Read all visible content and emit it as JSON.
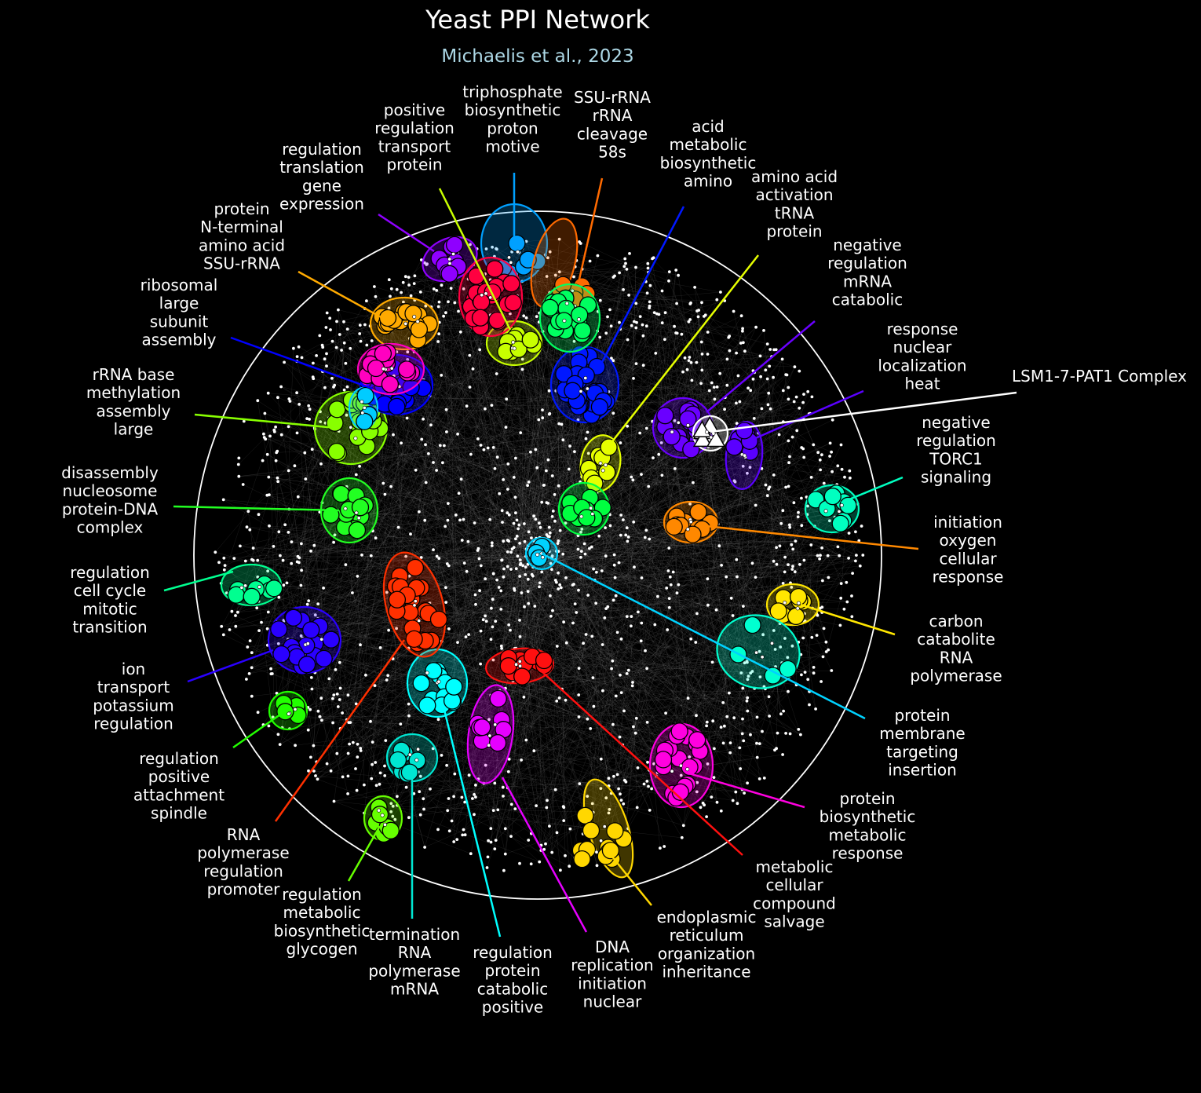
{
  "header": {
    "title": "Yeast PPI Network",
    "subtitle": "Michaelis et al., 2023"
  },
  "colors": {
    "background": "#000000",
    "title": "#ffffff",
    "subtitle": "#add8e6",
    "perimeter": "#ffffff",
    "edges": "#bfbfbf",
    "node": "#ffffff"
  },
  "clusters": [
    {
      "id": "c1",
      "label": [
        "regulation",
        "translation",
        "gene",
        "expression"
      ],
      "color": "#8f00ff",
      "shape": "circle"
    },
    {
      "id": "c2",
      "label": [
        "positive",
        "regulation",
        "transport",
        "protein"
      ],
      "color": "#c8ff00",
      "shape": "circle"
    },
    {
      "id": "c3",
      "label": [
        "triphosphate",
        "biosynthetic",
        "proton",
        "motive"
      ],
      "color": "#00a0ff",
      "shape": "circle"
    },
    {
      "id": "c4",
      "label": [
        "SSU-rRNA",
        "rRNA",
        "cleavage",
        "58s"
      ],
      "color": "#ff6a00",
      "shape": "circle"
    },
    {
      "id": "c5",
      "label": [
        "acid",
        "metabolic",
        "biosynthetic",
        "amino"
      ],
      "color": "#0018ff",
      "shape": "circle"
    },
    {
      "id": "c6",
      "label": [
        "amino acid",
        "activation",
        "tRNA",
        "protein"
      ],
      "color": "#e6ff00",
      "shape": "circle"
    },
    {
      "id": "c7",
      "label": [
        "negative",
        "regulation",
        "mRNA",
        "catabolic"
      ],
      "color": "#6a00ff",
      "shape": "circle"
    },
    {
      "id": "c8",
      "label": [
        "response",
        "nuclear",
        "localization",
        "heat"
      ],
      "color": "#5a00ff",
      "shape": "circle"
    },
    {
      "id": "c9",
      "label": [
        "LSM1-7-PAT1 Complex"
      ],
      "color": "#ffffff",
      "shape": "triangle"
    },
    {
      "id": "c10",
      "label": [
        "negative",
        "regulation",
        "TORC1",
        "signaling"
      ],
      "color": "#00ffc0",
      "shape": "circle"
    },
    {
      "id": "c11",
      "label": [
        "initiation",
        "oxygen",
        "cellular",
        "response"
      ],
      "color": "#ff8800",
      "shape": "circle"
    },
    {
      "id": "c12",
      "label": [
        "carbon",
        "catabolite",
        "RNA",
        "polymerase"
      ],
      "color": "#ffe600",
      "shape": "circle"
    },
    {
      "id": "c13",
      "label": [
        "protein",
        "membrane",
        "targeting",
        "insertion"
      ],
      "color": "#00d2ff",
      "shape": "circle"
    },
    {
      "id": "c14",
      "label": [
        "protein",
        "biosynthetic",
        "metabolic",
        "response"
      ],
      "color": "#ff00e0",
      "shape": "circle"
    },
    {
      "id": "c15",
      "label": [
        "metabolic",
        "cellular",
        "compound",
        "salvage"
      ],
      "color": "#ff1010",
      "shape": "circle"
    },
    {
      "id": "c16",
      "label": [
        "endoplasmic",
        "reticulum",
        "organization",
        "inheritance"
      ],
      "color": "#ffd700",
      "shape": "circle"
    },
    {
      "id": "c17",
      "label": [
        "DNA",
        "replication",
        "initiation",
        "nuclear"
      ],
      "color": "#e600ff",
      "shape": "circle"
    },
    {
      "id": "c18",
      "label": [
        "regulation",
        "protein",
        "catabolic",
        "positive"
      ],
      "color": "#00ffff",
      "shape": "circle"
    },
    {
      "id": "c19",
      "label": [
        "termination",
        "RNA",
        "polymerase",
        "mRNA"
      ],
      "color": "#00e6d2",
      "shape": "circle"
    },
    {
      "id": "c20",
      "label": [
        "regulation",
        "metabolic",
        "biosynthetic",
        "glycogen"
      ],
      "color": "#66ff00",
      "shape": "circle"
    },
    {
      "id": "c21",
      "label": [
        "RNA",
        "polymerase",
        "regulation",
        "promoter"
      ],
      "color": "#ff3000",
      "shape": "circle"
    },
    {
      "id": "c22",
      "label": [
        "regulation",
        "positive",
        "attachment",
        "spindle"
      ],
      "color": "#22ff00",
      "shape": "circle"
    },
    {
      "id": "c23",
      "label": [
        "ion",
        "transport",
        "potassium",
        "regulation"
      ],
      "color": "#2a00ff",
      "shape": "circle"
    },
    {
      "id": "c24",
      "label": [
        "regulation",
        "cell cycle",
        "mitotic",
        "transition"
      ],
      "color": "#00ff90",
      "shape": "circle"
    },
    {
      "id": "c25",
      "label": [
        "disassembly",
        "nucleosome",
        "protein-DNA",
        "complex"
      ],
      "color": "#22ff22",
      "shape": "circle"
    },
    {
      "id": "c26",
      "label": [
        "rRNA base",
        "methylation",
        "assembly",
        "large"
      ],
      "color": "#88ff00",
      "shape": "circle"
    },
    {
      "id": "c27",
      "label": [
        "ribosomal",
        "large",
        "subunit",
        "assembly"
      ],
      "color": "#0000ff",
      "shape": "circle"
    },
    {
      "id": "c28",
      "label": [
        "protein",
        "N-terminal",
        "amino acid",
        "SSU-rRNA"
      ],
      "color": "#ffaa00",
      "shape": "circle"
    },
    {
      "id": "c29",
      "label": [],
      "color": "#ff0040",
      "shape": "circle"
    },
    {
      "id": "c30",
      "label": [],
      "color": "#ff00c0",
      "shape": "circle"
    },
    {
      "id": "c31",
      "label": [],
      "color": "#00ff60",
      "shape": "circle"
    },
    {
      "id": "c32",
      "label": [],
      "color": "#00ff40",
      "shape": "circle"
    },
    {
      "id": "c33",
      "label": [],
      "color": "#00ccff",
      "shape": "circle"
    },
    {
      "id": "c34",
      "label": [],
      "color": "#00ffd0",
      "shape": "circle"
    }
  ]
}
